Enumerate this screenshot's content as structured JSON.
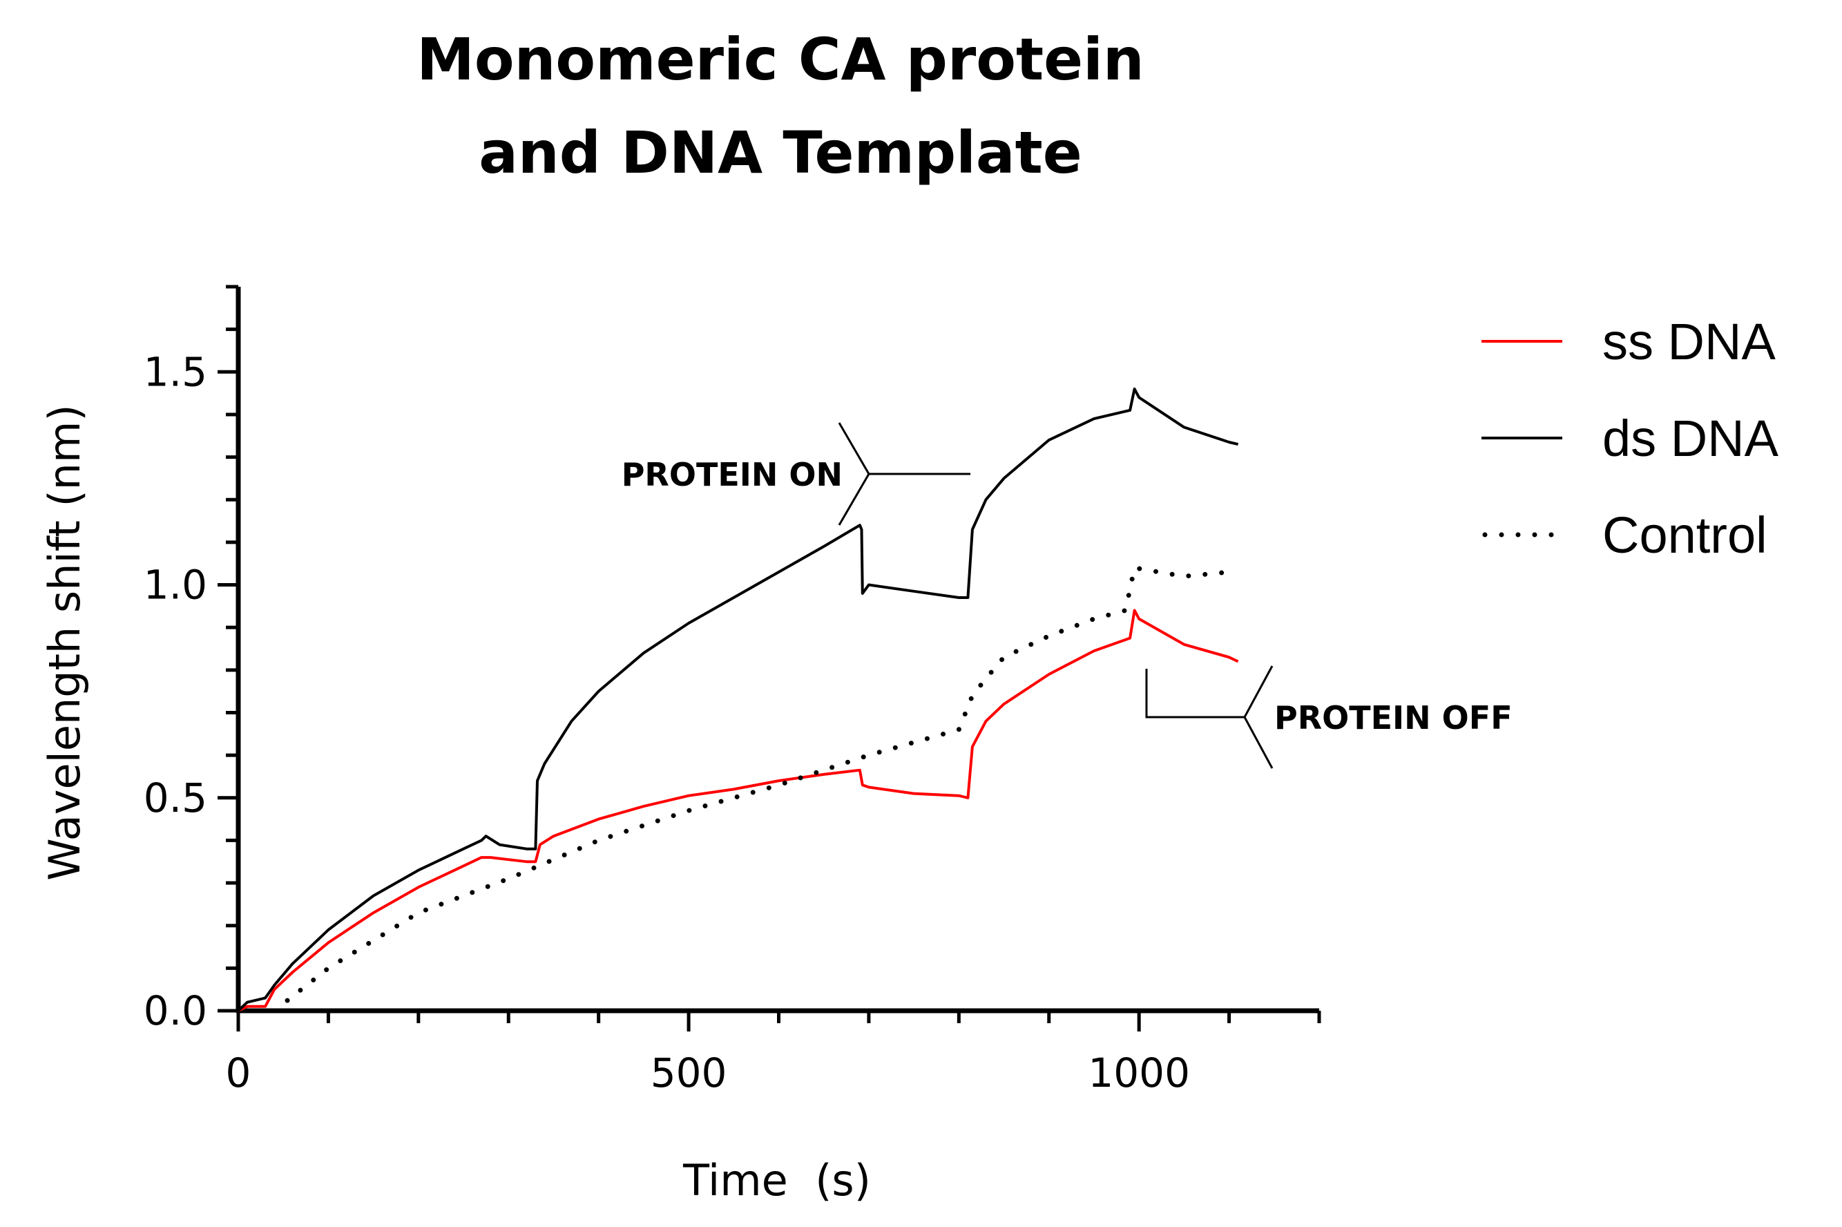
{
  "chart_data": {
    "type": "line",
    "title_lines": [
      "Monomeric CA protein",
      "and DNA Template"
    ],
    "xlabel": "Time  (s)",
    "ylabel": "Wavelength shift (nm)",
    "xlim": [
      0,
      1200
    ],
    "ylim": [
      0,
      1.7
    ],
    "x_ticks": [
      0,
      500,
      1000
    ],
    "x_tick_labels": [
      "0",
      "500",
      "1000"
    ],
    "y_ticks": [
      0,
      0.5,
      1.0,
      1.5
    ],
    "y_tick_labels": [
      "0.0",
      "0.5",
      "1.0",
      "1.5"
    ],
    "grid": false,
    "legend_position": "top-right",
    "series": [
      {
        "name": "ss DNA",
        "color": "#ff0000",
        "style": "solid",
        "points": [
          [
            0,
            0
          ],
          [
            10,
            0.01
          ],
          [
            30,
            0.01
          ],
          [
            40,
            0.05
          ],
          [
            60,
            0.09
          ],
          [
            100,
            0.16
          ],
          [
            150,
            0.23
          ],
          [
            200,
            0.29
          ],
          [
            250,
            0.34
          ],
          [
            270,
            0.36
          ],
          [
            280,
            0.36
          ],
          [
            300,
            0.355
          ],
          [
            320,
            0.35
          ],
          [
            330,
            0.35
          ],
          [
            335,
            0.39
          ],
          [
            350,
            0.41
          ],
          [
            400,
            0.45
          ],
          [
            450,
            0.48
          ],
          [
            500,
            0.505
          ],
          [
            550,
            0.52
          ],
          [
            600,
            0.54
          ],
          [
            650,
            0.555
          ],
          [
            690,
            0.565
          ],
          [
            693,
            0.53
          ],
          [
            700,
            0.525
          ],
          [
            750,
            0.51
          ],
          [
            800,
            0.505
          ],
          [
            810,
            0.5
          ],
          [
            815,
            0.62
          ],
          [
            830,
            0.68
          ],
          [
            850,
            0.72
          ],
          [
            900,
            0.79
          ],
          [
            950,
            0.845
          ],
          [
            990,
            0.875
          ],
          [
            995,
            0.94
          ],
          [
            1000,
            0.92
          ],
          [
            1050,
            0.86
          ],
          [
            1100,
            0.83
          ],
          [
            1110,
            0.82
          ]
        ]
      },
      {
        "name": "ds DNA",
        "color": "#000000",
        "style": "solid",
        "points": [
          [
            0,
            0
          ],
          [
            10,
            0.02
          ],
          [
            30,
            0.03
          ],
          [
            40,
            0.06
          ],
          [
            60,
            0.11
          ],
          [
            100,
            0.19
          ],
          [
            150,
            0.27
          ],
          [
            200,
            0.33
          ],
          [
            250,
            0.38
          ],
          [
            270,
            0.4
          ],
          [
            275,
            0.41
          ],
          [
            290,
            0.39
          ],
          [
            320,
            0.38
          ],
          [
            330,
            0.38
          ],
          [
            332,
            0.54
          ],
          [
            340,
            0.58
          ],
          [
            370,
            0.68
          ],
          [
            400,
            0.75
          ],
          [
            450,
            0.84
          ],
          [
            500,
            0.91
          ],
          [
            550,
            0.97
          ],
          [
            600,
            1.03
          ],
          [
            650,
            1.09
          ],
          [
            690,
            1.14
          ],
          [
            692,
            1.13
          ],
          [
            693,
            0.98
          ],
          [
            700,
            1.0
          ],
          [
            750,
            0.985
          ],
          [
            800,
            0.97
          ],
          [
            810,
            0.97
          ],
          [
            815,
            1.13
          ],
          [
            830,
            1.2
          ],
          [
            850,
            1.25
          ],
          [
            900,
            1.34
          ],
          [
            950,
            1.39
          ],
          [
            990,
            1.41
          ],
          [
            995,
            1.46
          ],
          [
            1000,
            1.44
          ],
          [
            1050,
            1.37
          ],
          [
            1100,
            1.335
          ],
          [
            1110,
            1.33
          ]
        ]
      },
      {
        "name": "Control",
        "color": "#000000",
        "style": "dotted",
        "points": [
          [
            40,
            0
          ],
          [
            100,
            0.1
          ],
          [
            200,
            0.23
          ],
          [
            300,
            0.31
          ],
          [
            400,
            0.4
          ],
          [
            500,
            0.47
          ],
          [
            600,
            0.53
          ],
          [
            700,
            0.6
          ],
          [
            800,
            0.66
          ],
          [
            815,
            0.74
          ],
          [
            830,
            0.78
          ],
          [
            850,
            0.83
          ],
          [
            900,
            0.88
          ],
          [
            950,
            0.92
          ],
          [
            985,
            0.94
          ],
          [
            995,
            1.04
          ],
          [
            1050,
            1.02
          ],
          [
            1100,
            1.03
          ]
        ]
      }
    ],
    "annotations": [
      {
        "text": "PROTEIN ON",
        "x": 330,
        "y": 1.27
      },
      {
        "text": "PROTEIN OFF",
        "x": 990,
        "y": 0.76
      }
    ]
  }
}
